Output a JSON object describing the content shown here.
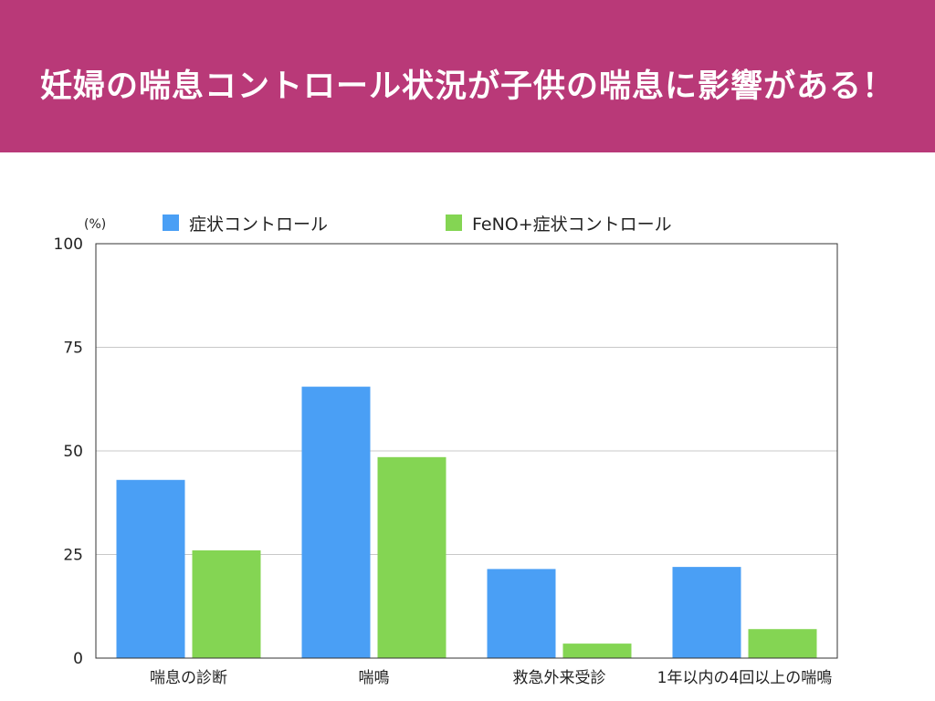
{
  "slide": {
    "title": "妊婦の喘息コントロール状況が子供の喘息に影響がある！",
    "header_color": "#b93978"
  },
  "chart_data": {
    "type": "bar",
    "y_unit": "(%)",
    "categories": [
      "喘息の診断",
      "喘鳴",
      "救急外来受診",
      "1年以内の4回以上の喘鳴"
    ],
    "series": [
      {
        "name": "症状コントロール",
        "color": "#4a9ff5",
        "values": [
          43,
          65.5,
          21.5,
          22
        ]
      },
      {
        "name": "FeNO+症状コントロール",
        "color": "#84d553",
        "values": [
          26,
          48.5,
          3.5,
          7
        ]
      }
    ],
    "ylim": [
      0,
      100
    ],
    "yticks": [
      0,
      25,
      50,
      75,
      100
    ],
    "grid": true,
    "legend_position": "top"
  }
}
